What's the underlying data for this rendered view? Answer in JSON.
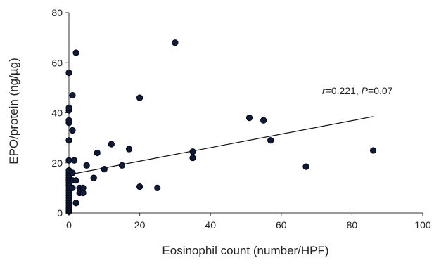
{
  "chart_data": {
    "type": "scatter",
    "title": "",
    "xlabel": "Eosinophil count (number/HPF)",
    "ylabel": "EPO/protein (ng/µg)",
    "xlim": [
      0,
      100
    ],
    "ylim": [
      0,
      80
    ],
    "x_ticks": [
      "0",
      "20",
      "40",
      "60",
      "80",
      "100"
    ],
    "y_ticks": [
      "0",
      "20",
      "40",
      "60",
      "80"
    ],
    "grid": false,
    "annotation": {
      "r_symbol": "r",
      "r_value": "=0.221, ",
      "p_symbol": "P",
      "p_value": "=0.07"
    },
    "trendline": {
      "x": [
        0,
        86
      ],
      "y": [
        15.3,
        38.5
      ]
    },
    "points": [
      {
        "x": 0,
        "y": 0.5
      },
      {
        "x": 0,
        "y": 1
      },
      {
        "x": 0,
        "y": 1.5
      },
      {
        "x": 0,
        "y": 2
      },
      {
        "x": 0,
        "y": 3
      },
      {
        "x": 0,
        "y": 4
      },
      {
        "x": 0,
        "y": 5
      },
      {
        "x": 0,
        "y": 6
      },
      {
        "x": 0,
        "y": 7
      },
      {
        "x": 0,
        "y": 8
      },
      {
        "x": 0,
        "y": 9
      },
      {
        "x": 0,
        "y": 10
      },
      {
        "x": 0,
        "y": 11
      },
      {
        "x": 0,
        "y": 12
      },
      {
        "x": 0,
        "y": 13
      },
      {
        "x": 0,
        "y": 14
      },
      {
        "x": 0,
        "y": 15
      },
      {
        "x": 0,
        "y": 16
      },
      {
        "x": 0,
        "y": 17
      },
      {
        "x": 0,
        "y": 21
      },
      {
        "x": 0,
        "y": 29
      },
      {
        "x": 0,
        "y": 36
      },
      {
        "x": 0,
        "y": 37
      },
      {
        "x": 0,
        "y": 41
      },
      {
        "x": 0,
        "y": 42
      },
      {
        "x": 0,
        "y": 56
      },
      {
        "x": 1,
        "y": 33
      },
      {
        "x": 1,
        "y": 47
      },
      {
        "x": 1,
        "y": 16
      },
      {
        "x": 1,
        "y": 13
      },
      {
        "x": 1,
        "y": 10
      },
      {
        "x": 1.5,
        "y": 21
      },
      {
        "x": 2,
        "y": 64
      },
      {
        "x": 2,
        "y": 13
      },
      {
        "x": 2,
        "y": 4
      },
      {
        "x": 3,
        "y": 10
      },
      {
        "x": 3,
        "y": 8
      },
      {
        "x": 4,
        "y": 10
      },
      {
        "x": 4,
        "y": 8
      },
      {
        "x": 5,
        "y": 19
      },
      {
        "x": 7,
        "y": 14
      },
      {
        "x": 8,
        "y": 24
      },
      {
        "x": 10,
        "y": 17.5
      },
      {
        "x": 12,
        "y": 27.5
      },
      {
        "x": 15,
        "y": 19
      },
      {
        "x": 17,
        "y": 25.5
      },
      {
        "x": 20,
        "y": 46
      },
      {
        "x": 20,
        "y": 10.5
      },
      {
        "x": 25,
        "y": 10
      },
      {
        "x": 30,
        "y": 68
      },
      {
        "x": 35,
        "y": 24.5
      },
      {
        "x": 35,
        "y": 22
      },
      {
        "x": 51,
        "y": 38
      },
      {
        "x": 55,
        "y": 37
      },
      {
        "x": 57,
        "y": 29
      },
      {
        "x": 67,
        "y": 18.5
      },
      {
        "x": 86,
        "y": 25
      }
    ]
  }
}
